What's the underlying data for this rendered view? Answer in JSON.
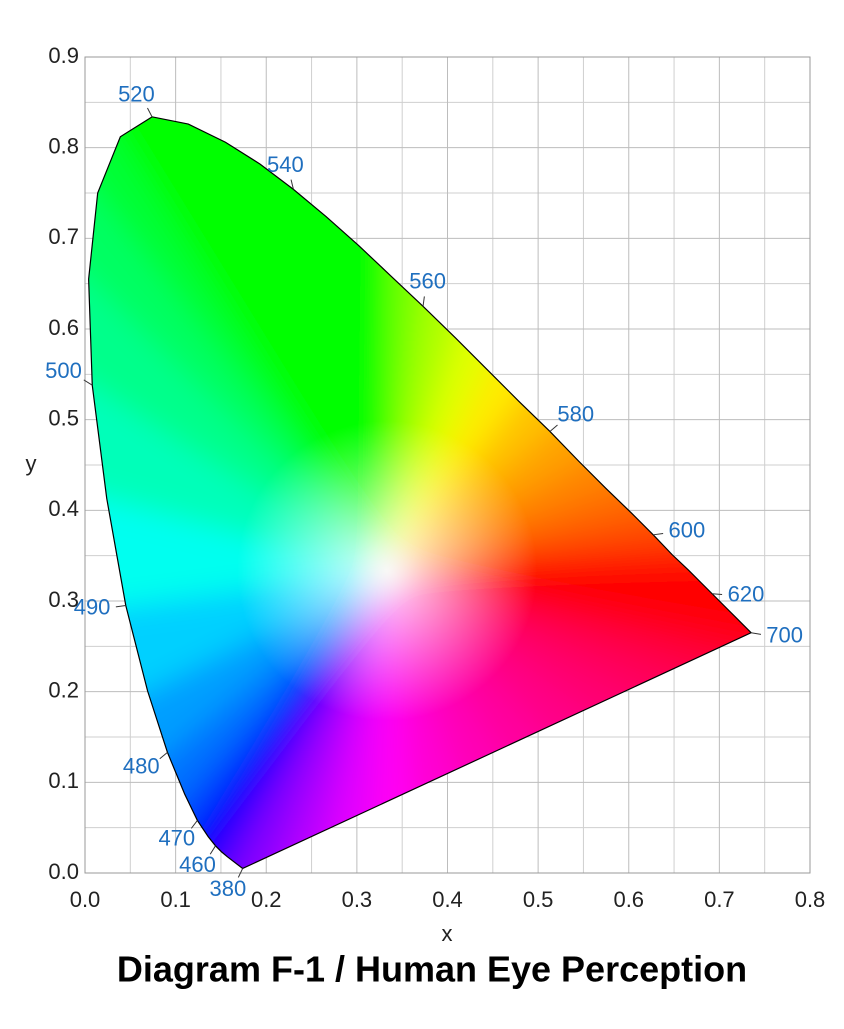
{
  "chart_data": {
    "type": "chromaticity",
    "title": "Diagram F-1 / Human Eye Perception",
    "xlabel": "x",
    "ylabel": "y",
    "xlim": [
      0,
      0.8
    ],
    "ylim": [
      0,
      0.9
    ],
    "xticks": [
      {
        "value": 0,
        "label": "0.0"
      },
      0.1,
      0.2,
      0.3,
      0.4,
      0.5,
      0.6,
      0.7,
      0.8
    ],
    "yticks": [
      {
        "value": 0,
        "label": "0.0"
      },
      0.1,
      0.2,
      0.3,
      0.4,
      0.5,
      0.6,
      0.7,
      0.8,
      0.9
    ],
    "grid": true,
    "minor_grid": true,
    "label_color": "#1f6fbf",
    "locus": {
      "labels": [
        380,
        null,
        null,
        460,
        null,
        470,
        null,
        480,
        null,
        490,
        null,
        500,
        null,
        null,
        null,
        520,
        null,
        null,
        null,
        540,
        null,
        null,
        null,
        560,
        null,
        null,
        null,
        580,
        null,
        null,
        null,
        600,
        null,
        null,
        null,
        620,
        null,
        null,
        null,
        700
      ],
      "x": [
        0.174,
        0.157,
        0.151,
        0.144,
        0.136,
        0.124,
        0.11,
        0.091,
        0.069,
        0.045,
        0.024,
        0.008,
        0.004,
        0.014,
        0.039,
        0.074,
        0.114,
        0.155,
        0.193,
        0.23,
        0.266,
        0.302,
        0.337,
        0.373,
        0.409,
        0.444,
        0.479,
        0.513,
        0.545,
        0.575,
        0.603,
        0.627,
        0.648,
        0.666,
        0.68,
        0.692,
        0.708,
        0.719,
        0.726,
        0.735
      ],
      "y": [
        0.005,
        0.018,
        0.023,
        0.03,
        0.04,
        0.058,
        0.087,
        0.133,
        0.201,
        0.295,
        0.413,
        0.538,
        0.655,
        0.75,
        0.812,
        0.834,
        0.826,
        0.806,
        0.782,
        0.754,
        0.724,
        0.692,
        0.659,
        0.625,
        0.59,
        0.555,
        0.52,
        0.487,
        0.454,
        0.424,
        0.397,
        0.373,
        0.351,
        0.334,
        0.32,
        0.308,
        0.292,
        0.281,
        0.274,
        0.265
      ]
    }
  }
}
